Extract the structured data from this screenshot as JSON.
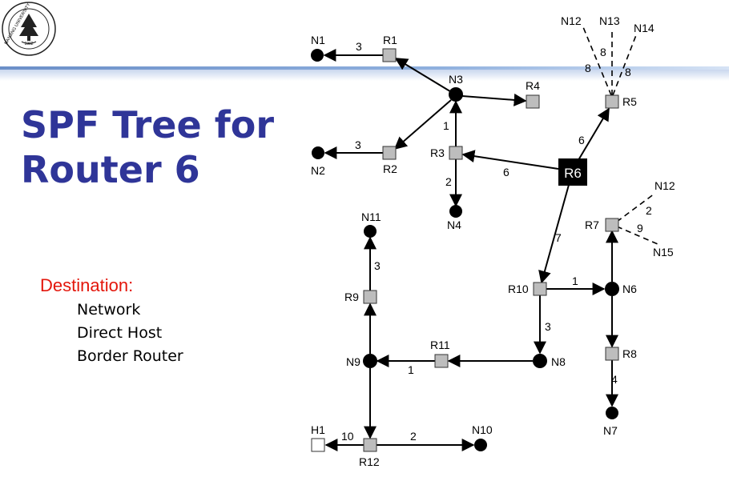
{
  "colors": {
    "title": "#2f3598",
    "destination": "#e3160b",
    "rule": "#5b86c6",
    "root": "#000000",
    "router": "#bdbdbd"
  },
  "logo": {
    "name": "nanjing-university-emblem",
    "motto": "NANJING UNIVERSITY",
    "year": "1902"
  },
  "title": {
    "line1": "SPF Tree for",
    "line2": "Router 6"
  },
  "destination": {
    "label": "Destination:",
    "items": [
      "Network",
      "Direct Host",
      "Border Router"
    ]
  },
  "nodes": {
    "N1": "N1",
    "R1": "R1",
    "N2": "N2",
    "R2": "R2",
    "N3": "N3",
    "R4": "R4",
    "R3": "R3",
    "N4": "N4",
    "R6": "R6",
    "R5": "R5",
    "N12a": "N12",
    "N13": "N13",
    "N14": "N14",
    "N12b": "N12",
    "R7": "R7",
    "N15": "N15",
    "N11": "N11",
    "R9": "R9",
    "R10": "R10",
    "N6": "N6",
    "R11": "R11",
    "N8": "N8",
    "N9": "N9",
    "R8": "R8",
    "N7": "N7",
    "H1": "H1",
    "R12": "R12",
    "N10": "N10"
  },
  "weights": {
    "r1_n1": "3",
    "r2_n2": "3",
    "n3_r3": "1",
    "r3_n4": "2",
    "r6_r3": "6",
    "r6_r5": "6",
    "r6_r10": "7",
    "r10_n6": "1",
    "r10_n8": "3",
    "r11_n9": "1",
    "r9_n11": "3",
    "r8_n7": "4",
    "r12_h1": "10",
    "r12_n10": "2",
    "r5_n12": "8",
    "r5_n13": "8",
    "r5_n14": "8",
    "r7_n12": "2",
    "r7_n15": "9"
  }
}
